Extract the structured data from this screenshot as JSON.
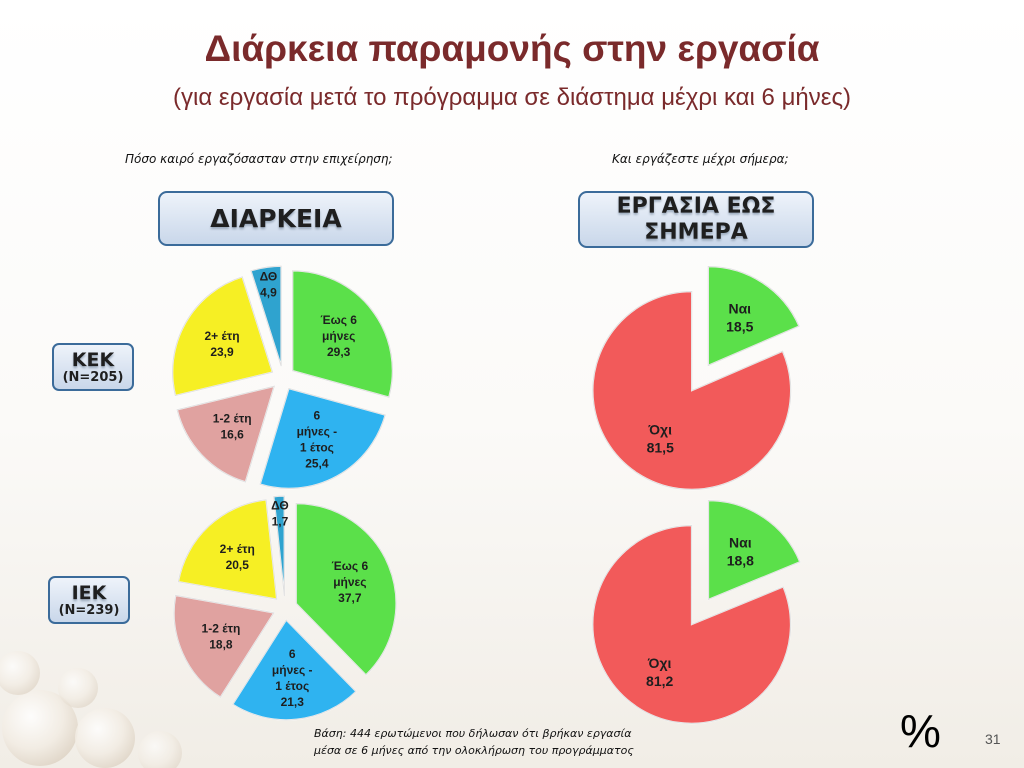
{
  "slide": {
    "title": "Διάρκεια παραμονής στην εργασία",
    "subtitle": "(για εργασία μετά το πρόγραμμα σε διάστημα μέχρι και 6 μήνες)",
    "question_left": "Πόσο καιρό εργαζόσασταν  στην επιχείρηση;",
    "question_right": "Και εργάζεστε μέχρι σήμερα;",
    "header_left": "ΔΙΑΡΚΕΙΑ",
    "header_right_line1": "ΕΡΓΑΣΙΑ ΕΩΣ",
    "header_right_line2": "ΣΗΜΕΡΑ",
    "group1_label": "ΚΕΚ",
    "group1_n": "(N=205)",
    "group2_label": "ΙΕΚ",
    "group2_n": "(N=239)",
    "footnote_line1": "Βάση: 444 ερωτώμενοι που δήλωσαν ότι βρήκαν εργασία",
    "footnote_line2": "μέσα σε 6 μήνες από την ολοκλήρωση του προγράμματος",
    "percent_symbol": "%",
    "page_number": "31"
  },
  "chart_data": [
    {
      "type": "pie",
      "group": "ΚΕΚ",
      "question": "Πόσο καιρό εργαζόσασταν  στην επιχείρηση;",
      "exploded": true,
      "slices": [
        {
          "label": [
            "Έως 6",
            "μήνες"
          ],
          "value": 29.3,
          "display": "29,3",
          "color": "#5be04a"
        },
        {
          "label": [
            "6",
            "μήνες -",
            "1 έτος"
          ],
          "value": 25.4,
          "display": "25,4",
          "color": "#2fb3f0"
        },
        {
          "label": [
            "1-2 έτη"
          ],
          "value": 16.6,
          "display": "16,6",
          "color": "#e0a2a0"
        },
        {
          "label": [
            "2+ έτη"
          ],
          "value": 23.9,
          "display": "23,9",
          "color": "#f6ef24"
        },
        {
          "label": [
            "ΔΘ"
          ],
          "value": 4.9,
          "display": "4,9",
          "color": "#2fa3cf"
        }
      ]
    },
    {
      "type": "pie",
      "group": "ΚΕΚ",
      "question": "Και εργάζεστε μέχρι σήμερα;",
      "exploded": true,
      "slices": [
        {
          "label": [
            "Ναι"
          ],
          "value": 18.5,
          "display": "18,5",
          "color": "#5be04a"
        },
        {
          "label": [
            "Όχι"
          ],
          "value": 81.5,
          "display": "81,5",
          "color": "#f25a5a"
        }
      ]
    },
    {
      "type": "pie",
      "group": "ΙΕΚ",
      "question": "Πόσο καιρό εργαζόσασταν  στην επιχείρηση;",
      "exploded": true,
      "slices": [
        {
          "label": [
            "Έως 6",
            "μήνες"
          ],
          "value": 37.7,
          "display": "37,7",
          "color": "#5be04a"
        },
        {
          "label": [
            "6",
            "μήνες -",
            "1 έτος"
          ],
          "value": 21.3,
          "display": "21,3",
          "color": "#2fb3f0"
        },
        {
          "label": [
            "1-2 έτη"
          ],
          "value": 18.8,
          "display": "18,8",
          "color": "#e0a2a0"
        },
        {
          "label": [
            "2+ έτη"
          ],
          "value": 20.5,
          "display": "20,5",
          "color": "#f6ef24"
        },
        {
          "label": [
            "ΔΘ"
          ],
          "value": 1.7,
          "display": "1,7",
          "color": "#2fa3cf"
        }
      ]
    },
    {
      "type": "pie",
      "group": "ΙΕΚ",
      "question": "Και εργάζεστε μέχρι σήμερα;",
      "exploded": true,
      "slices": [
        {
          "label": [
            "Ναι"
          ],
          "value": 18.8,
          "display": "18,8",
          "color": "#5be04a"
        },
        {
          "label": [
            "Όχι"
          ],
          "value": 81.2,
          "display": "81,2",
          "color": "#f25a5a"
        }
      ]
    }
  ]
}
